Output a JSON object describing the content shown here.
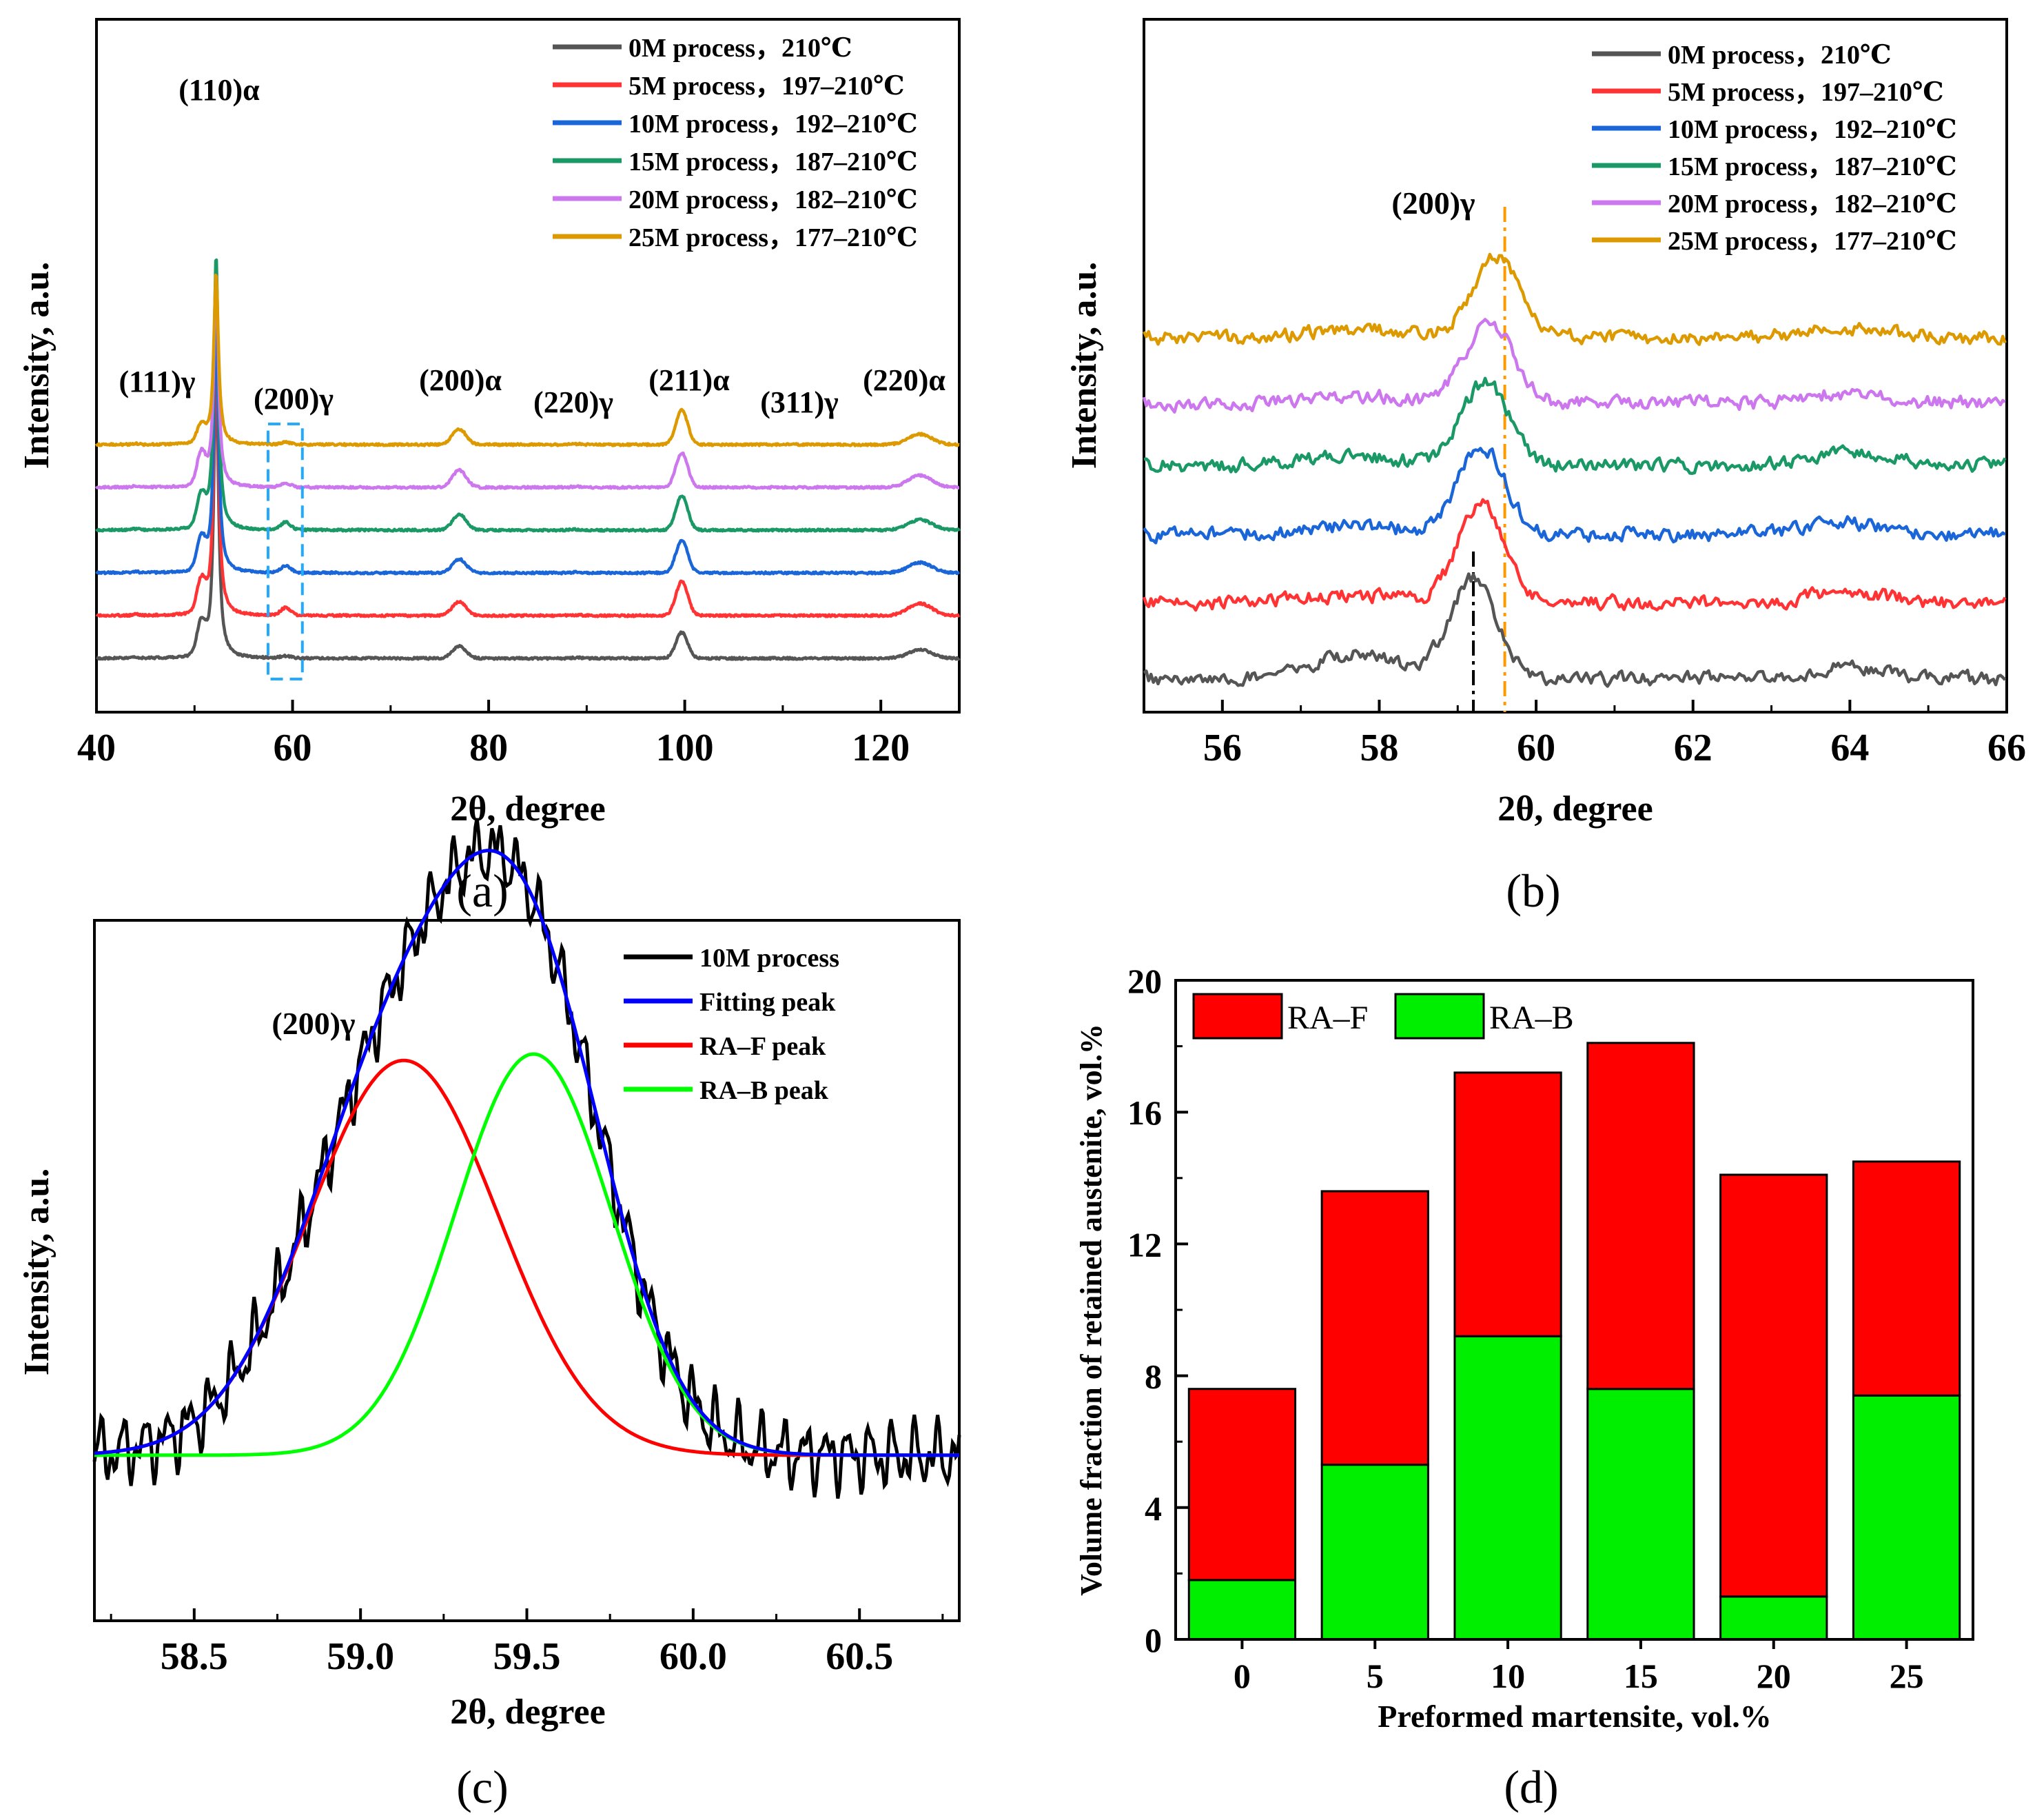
{
  "chart_data": [
    {
      "panel": "(a)",
      "type": "line",
      "title": "",
      "xlabel": "2θ, degree",
      "ylabel": "Intensity, a.u.",
      "xlim": [
        40,
        128
      ],
      "xticks": [
        40,
        60,
        80,
        100,
        120
      ],
      "y_scale": "arbitrary (curves vertically offset)",
      "series": [
        {
          "name": "0M   process，210℃",
          "color": "#555555",
          "offset": 0,
          "peak_heights": {
            "111g": 0.9,
            "110a": 8.5,
            "200g": 0.06,
            "200a": 0.35,
            "211a": 0.75,
            "220a": 0.25
          }
        },
        {
          "name": "5M   process，197–210℃",
          "color": "#ff3333",
          "offset": 1,
          "peak_heights": {
            "111g": 0.9,
            "110a": 8.0,
            "200g": 0.22,
            "200a": 0.4,
            "211a": 1.0,
            "220a": 0.35
          }
        },
        {
          "name": "10M process，192–210℃",
          "color": "#1a66d9",
          "offset": 2,
          "peak_heights": {
            "111g": 0.9,
            "110a": 7.5,
            "200g": 0.2,
            "200a": 0.4,
            "211a": 0.95,
            "220a": 0.3
          }
        },
        {
          "name": "15M process，187–210℃",
          "color": "#1a9966",
          "offset": 3,
          "peak_heights": {
            "111g": 0.9,
            "110a": 8.0,
            "200g": 0.22,
            "200a": 0.45,
            "211a": 1.0,
            "220a": 0.3
          }
        },
        {
          "name": "20M process，182–210℃",
          "color": "#cc77ee",
          "offset": 4,
          "peak_heights": {
            "111g": 0.9,
            "110a": 6.2,
            "200g": 0.12,
            "200a": 0.5,
            "211a": 1.0,
            "220a": 0.35
          }
        },
        {
          "name": "25M process，177–210℃",
          "color": "#dd9900",
          "offset": 5,
          "peak_heights": {
            "111g": 0.5,
            "110a": 5.0,
            "200g": 0.06,
            "200a": 0.45,
            "211a": 1.0,
            "220a": 0.3
          }
        }
      ],
      "peaks": [
        {
          "label": "(111)γ",
          "x": 50.6
        },
        {
          "label": "(110)α",
          "x": 52.2
        },
        {
          "label": "(200)γ",
          "x": 59.3
        },
        {
          "label": "(200)α",
          "x": 77.0
        },
        {
          "label": "(220)γ",
          "x": 89.0
        },
        {
          "label": "(211)α",
          "x": 99.7
        },
        {
          "label": "(311)γ",
          "x": 111.0
        },
        {
          "label": "(220)α",
          "x": 124.0
        }
      ],
      "highlight_range": [
        57.5,
        61.0
      ],
      "panel_label": "(a)"
    },
    {
      "panel": "(b)",
      "type": "line",
      "xlabel": "2θ, degree",
      "ylabel": "Intensity, a.u.",
      "xlim": [
        55,
        66
      ],
      "xticks": [
        56,
        58,
        60,
        62,
        64,
        66
      ],
      "annotation": "(200)γ",
      "vertical_lines": [
        {
          "x": 59.2,
          "color": "#000000",
          "style": "dash-dot"
        },
        {
          "x": 59.6,
          "color": "#ff9900",
          "style": "dash-dot"
        }
      ],
      "series": [
        {
          "name": "0M   process，210℃",
          "color": "#555555",
          "peak_center": 59.2,
          "peak_height": 3.6
        },
        {
          "name": "5M   process，197–210℃",
          "color": "#ff3333",
          "peak_center": 59.3,
          "peak_height": 3.6
        },
        {
          "name": "10M process，192–210℃",
          "color": "#1a66d9",
          "peak_center": 59.3,
          "peak_height": 3.2
        },
        {
          "name": "15M process，187–210℃",
          "color": "#1a9966",
          "peak_center": 59.35,
          "peak_height": 3.0
        },
        {
          "name": "20M process，182–210℃",
          "color": "#cc77ee",
          "peak_center": 59.4,
          "peak_height": 3.0
        },
        {
          "name": "25M process，177–210℃",
          "color": "#dd9900",
          "peak_center": 59.5,
          "peak_height": 3.0
        }
      ],
      "panel_label": "(b)"
    },
    {
      "panel": "(c)",
      "type": "line",
      "xlabel": "2θ, degree",
      "ylabel": "Intensity, a.u.",
      "xlim": [
        58.2,
        60.8
      ],
      "xticks": [
        58.5,
        59.0,
        59.5,
        60.0,
        60.5
      ],
      "ylim": [
        0,
        1.1
      ],
      "annotation": "(200)γ",
      "series": [
        {
          "name": "10M process",
          "color": "#000000",
          "kind": "measured"
        },
        {
          "name": "Fitting peak",
          "color": "#0000ff",
          "kind": "sum"
        },
        {
          "name": "RA–F peak",
          "color": "#ff0000",
          "center": 59.13,
          "height": 0.62,
          "sigma": 0.285
        },
        {
          "name": "RA–B peak",
          "color": "#00ff00",
          "center": 59.52,
          "height": 0.63,
          "sigma": 0.235
        }
      ],
      "baseline": 0.26,
      "panel_label": "(c)"
    },
    {
      "panel": "(d)",
      "type": "bar",
      "stacked": true,
      "xlabel": "Preformed martensite, vol.%",
      "ylabel": "Volume fraction of retained austenite, vol.%",
      "categories": [
        "0",
        "5",
        "10",
        "15",
        "20",
        "25"
      ],
      "ylim": [
        0,
        20
      ],
      "yticks": [
        0,
        4,
        8,
        12,
        16,
        20
      ],
      "series": [
        {
          "name": "RA–B",
          "color": "#00ee00",
          "values": [
            1.8,
            5.3,
            9.2,
            7.6,
            1.3,
            7.4
          ]
        },
        {
          "name": "RA–F",
          "color": "#ff0000",
          "values": [
            5.8,
            8.3,
            8.0,
            10.5,
            12.8,
            7.1
          ]
        }
      ],
      "legend_order": [
        "RA–F",
        "RA–B"
      ],
      "panel_label": "(d)"
    }
  ]
}
